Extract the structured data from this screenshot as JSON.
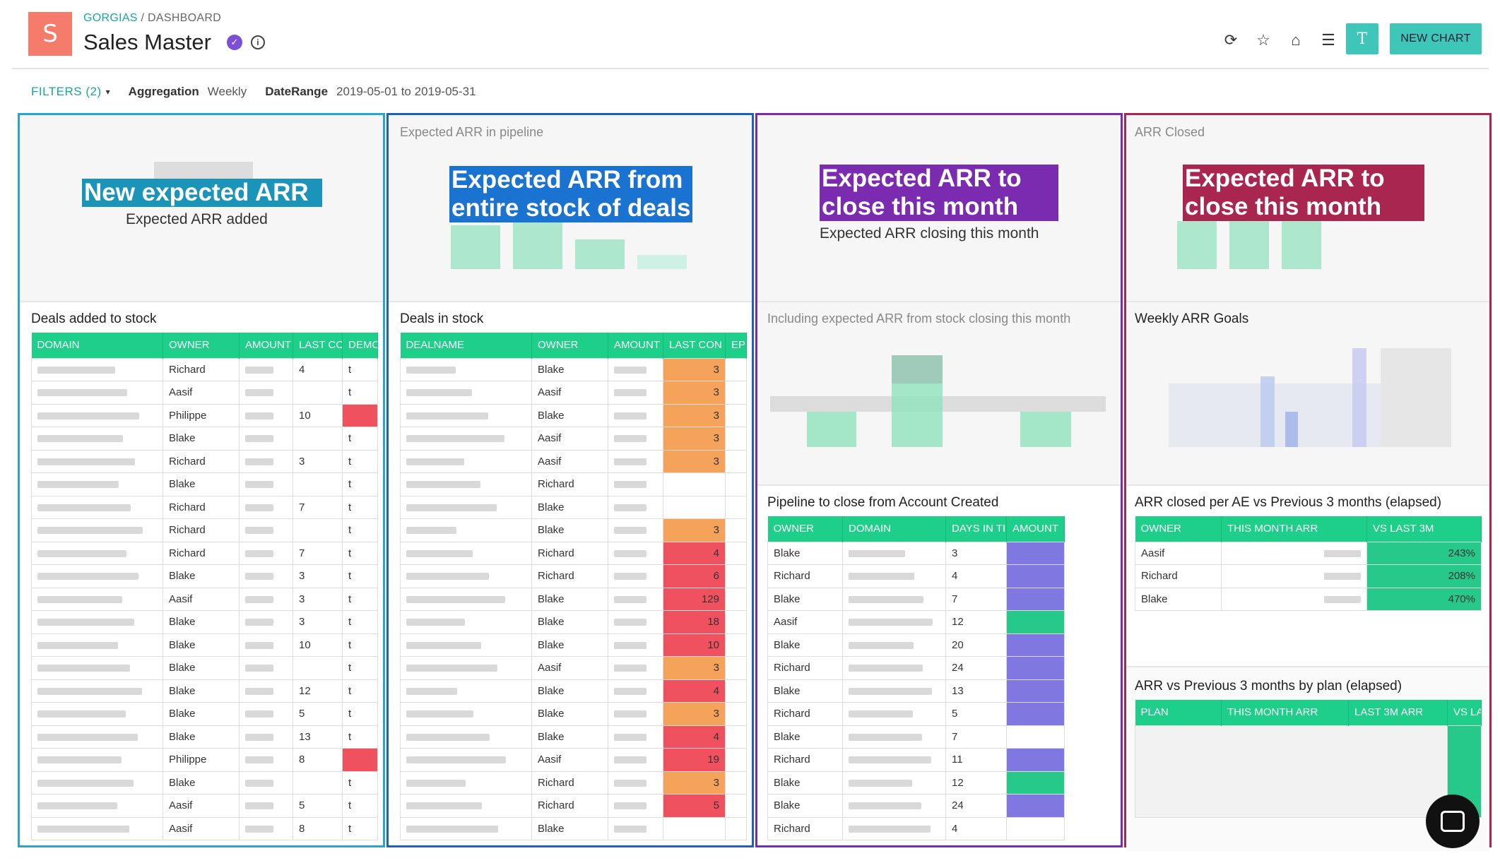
{
  "header": {
    "org": "GORGIAS",
    "crumb_sep": " / ",
    "crumb_page": "DASHBOARD",
    "logo_letter": "S",
    "title": "Sales Master",
    "verified_glyph": "✓",
    "info_glyph": "i",
    "tools": [
      "refresh-icon",
      "star-icon",
      "home-icon",
      "menu-icon"
    ],
    "tool_glyphs": [
      "⟳",
      "☆",
      "⌂",
      "☰"
    ],
    "avatar": "T",
    "new_chart": "NEW CHART"
  },
  "filters": {
    "button": "FILTERS (2)",
    "caret": "▾",
    "aggregation_label": "Aggregation",
    "aggregation_value": "Weekly",
    "daterange_label": "DateRange",
    "daterange_value": "2019-05-01 to 2019-05-31"
  },
  "colors": {
    "teal": "#3ec6b8",
    "table_header": "#1ecf8a",
    "panel1": "#2aa6c8",
    "panel2": "#1f5fbf",
    "panel3": "#7a2bb0",
    "panel4": "#a8264f"
  },
  "panel1": {
    "big_label": "New expected ARR",
    "sub_label": "Expected ARR added",
    "section_title": "Deals added to stock",
    "columns": [
      "DOMAIN",
      "OWNER",
      "AMOUNT",
      "LAST CO",
      "DEMO"
    ],
    "owners": [
      "Richard",
      "Aasif",
      "Philippe",
      "Blake",
      "Richard",
      "Blake",
      "Richard",
      "Richard",
      "Richard",
      "Blake",
      "Aasif",
      "Blake",
      "Blake",
      "Blake",
      "Blake",
      "Blake",
      "Blake",
      "Philippe",
      "Blake",
      "Aasif",
      "Aasif"
    ],
    "last_contact": [
      "4",
      "",
      "10",
      "",
      "3",
      "",
      "7",
      "",
      "7",
      "3",
      "3",
      "3",
      "10",
      "",
      "12",
      "5",
      "13",
      "8",
      "",
      "5",
      "8"
    ],
    "demo": [
      "t",
      "t",
      "",
      "t",
      "t",
      "t",
      "t",
      "t",
      "t",
      "t",
      "t",
      "t",
      "t",
      "t",
      "t",
      "t",
      "t",
      "",
      "t",
      "t",
      "t"
    ]
  },
  "panel2": {
    "caption": "Expected ARR in pipeline",
    "big_label_1": "Expected ARR from",
    "big_label_2": "entire stock of deals",
    "section_title": "Deals in stock",
    "columns": [
      "DEALNAME",
      "OWNER",
      "AMOUNT",
      "LAST CON",
      "EP"
    ],
    "owners": [
      "Blake",
      "Aasif",
      "Blake",
      "Aasif",
      "Aasif",
      "Richard",
      "Blake",
      "Blake",
      "Richard",
      "Richard",
      "Blake",
      "Blake",
      "Blake",
      "Aasif",
      "Blake",
      "Blake",
      "Blake",
      "Aasif",
      "Richard",
      "Richard",
      "Blake"
    ],
    "last_contact": [
      "3",
      "3",
      "3",
      "3",
      "3",
      "",
      "",
      "3",
      "4",
      "6",
      "129",
      "18",
      "10",
      "3",
      "4",
      "3",
      "4",
      "19",
      "3",
      "5",
      ""
    ]
  },
  "panel3": {
    "big_label_1": "Expected ARR to",
    "big_label_2": "close this month",
    "sub_label": "Expected ARR closing this month",
    "caption": "Including expected ARR from stock closing this month",
    "section_title": "Pipeline to close from Account Created",
    "columns": [
      "OWNER",
      "DOMAIN",
      "DAYS IN TI",
      "AMOUNT"
    ],
    "owners": [
      "Blake",
      "Richard",
      "Blake",
      "Aasif",
      "Blake",
      "Richard",
      "Blake",
      "Richard",
      "Blake",
      "Richard",
      "Blake",
      "Blake",
      "Richard"
    ],
    "days": [
      "3",
      "4",
      "7",
      "12",
      "20",
      "24",
      "13",
      "5",
      "7",
      "11",
      "12",
      "24",
      "4"
    ]
  },
  "panel4": {
    "caption": "ARR Closed",
    "big_label_1": "Expected ARR to",
    "big_label_2": "close this month",
    "goals_title": "Weekly ARR Goals",
    "ae_title": "ARR closed per AE vs Previous 3 months (elapsed)",
    "ae_columns": [
      "OWNER",
      "THIS MONTH ARR",
      "VS LAST 3M"
    ],
    "ae_rows": [
      {
        "owner": "Aasif",
        "vs": "243%"
      },
      {
        "owner": "Richard",
        "vs": "208%"
      },
      {
        "owner": "Blake",
        "vs": "470%"
      }
    ],
    "plan_title": "ARR vs Previous 3 months by plan (elapsed)",
    "plan_columns": [
      "PLAN",
      "THIS MONTH ARR",
      "LAST 3M ARR",
      "VS LA"
    ]
  },
  "chat": "chat-icon"
}
